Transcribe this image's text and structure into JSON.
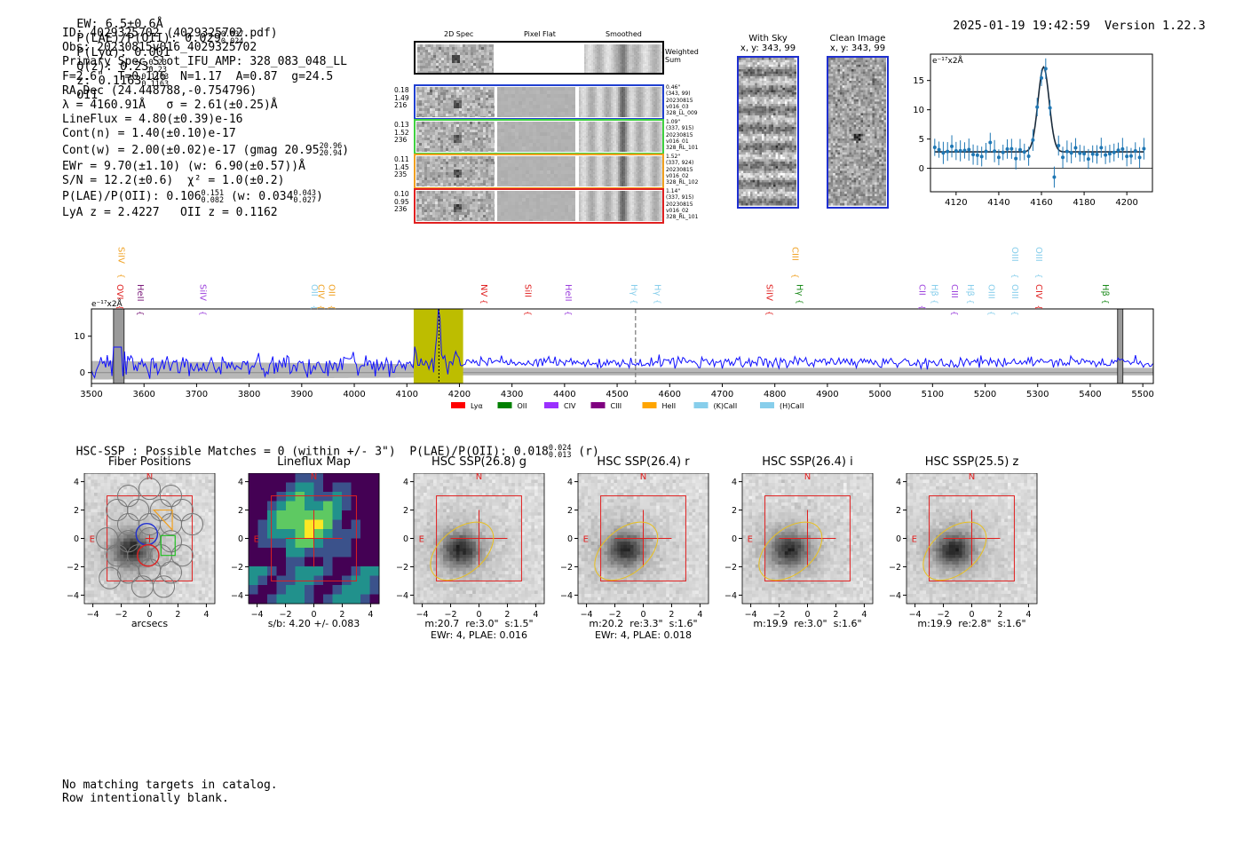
{
  "header": {
    "ew": "EW: 6.5±0.6Å",
    "plae": "P(LAE)/P(OII): 0.029",
    "plae_hi": "0.037",
    "plae_lo": "0.024",
    "plya": "P(Lyα): 0.001",
    "qz": "Q(z): 0.23",
    "qz_hi": "0.23",
    "qz_lo": "0.23",
    "z": "z: 0.1163",
    "z_hi": "0.1163",
    "z_lo": "0.1163",
    "z_line": "OII",
    "timestamp": "2025-01-19 19:42:59",
    "version": "Version 1.22.3"
  },
  "info": {
    "id": "ID: 4029325702 (4029325702.pdf)",
    "obs": "Obs: 20230815v016_4029325702",
    "primary": "Primary Spec_Slot_IFU_AMP: 328_083_048_LL",
    "fiber_params": "F=2.6\"  T=0.126  N=1.17  A=0.87  g=24.5",
    "radec": "RA,Dec (24.448788,-0.754796)",
    "lambda_sigma": "λ = 4160.91Å   σ = 2.61(±0.25)Å",
    "lineflux": "LineFlux = 4.80(±0.39)e-16",
    "cont_n": "Cont(n) = 1.40(±0.10)e-17",
    "cont_w": "Cont(w) = 2.00(±0.02)e-17 (gmag 20.95",
    "cont_w_hi": "20.96",
    "cont_w_lo": "20.94",
    "cont_w_end": ")",
    "ewr": "EWr = 9.70(±1.10) (w: 6.90(±0.57))Å",
    "sn": "S/N = 12.2(±0.6)  χ² = 1.0(±0.2)",
    "plae": "P(LAE)/P(OII): 0.106",
    "plae_hi": "0.151",
    "plae_lo": "0.082",
    "plae_w": "(w: 0.034",
    "plae_w_hi": "0.043",
    "plae_w_lo": "0.027",
    "plae_w_end": ")",
    "lya_oii": "LyA z = 2.4227   OII z = 0.1162"
  },
  "cutouts": {
    "col_2d": "2D Spec",
    "col_flat": "Pixel Flat",
    "col_smooth": "Smoothed",
    "weighted": "Weighted Sum",
    "rows": [
      {
        "left": [
          "0.18",
          "1.49",
          "216"
        ],
        "right": [
          "0.46\"",
          "(343, 99)",
          "20230815",
          "v016_03",
          "328_LL_009"
        ],
        "color": "#1f3fd0"
      },
      {
        "left": [
          "0.13",
          "1.52",
          "236"
        ],
        "right": [
          "1.09\"",
          "(337, 915)",
          "20230815",
          "v016_01",
          "328_RL_101"
        ],
        "color": "#3fd03f"
      },
      {
        "left": [
          "0.11",
          "1.45",
          "235"
        ],
        "right": [
          "1.52\"",
          "(337, 924)",
          "20230815",
          "v016_02",
          "328_RL_102"
        ],
        "color": "#f0a020"
      },
      {
        "left": [
          "0.10",
          "0.95",
          "236"
        ],
        "right": [
          "1.14\"",
          "(337, 915)",
          "20230815",
          "v016_02",
          "328_RL_101"
        ],
        "color": "#e02020"
      }
    ]
  },
  "sky": {
    "with_sky_title": "With Sky",
    "with_sky_xy": "x, y: 343, 99",
    "clean_title": "Clean Image",
    "clean_xy": "x, y: 343, 99"
  },
  "zoom_chart": {
    "ylabel": "e⁻¹⁷x2Å",
    "xticks": [
      "4120",
      "4140",
      "4160",
      "4180",
      "4200"
    ],
    "yticks": [
      "0",
      "5",
      "10",
      "15"
    ]
  },
  "spectrum": {
    "ylabel": "e⁻¹⁷x2Å",
    "yticks": [
      "0",
      "10"
    ],
    "xticks": [
      "3500",
      "3600",
      "3700",
      "3800",
      "3900",
      "4000",
      "4100",
      "4200",
      "4300",
      "4400",
      "4500",
      "4600",
      "4700",
      "4800",
      "4900",
      "5000",
      "5100",
      "5200",
      "5300",
      "5400",
      "5500"
    ],
    "lines": [
      {
        "label": "SiIV",
        "color": "#f0a020",
        "wl": 3545,
        "row": 0
      },
      {
        "label": "OVI",
        "color": "#e02020",
        "wl": 3542,
        "row": 1
      },
      {
        "label": "HeII",
        "color": "#7a1a7a",
        "wl": 3581,
        "row": 1
      },
      {
        "label": "SiIV",
        "color": "#9b3fdc",
        "wl": 3700,
        "row": 1
      },
      {
        "label": "OII",
        "color": "#87ceeb",
        "wl": 3912,
        "row": 1
      },
      {
        "label": "CIV",
        "color": "#f0a020",
        "wl": 3925,
        "row": 1
      },
      {
        "label": "OII",
        "color": "#f0a020",
        "wl": 3945,
        "row": 1
      },
      {
        "label": "NV",
        "color": "#e02020",
        "wl": 4235,
        "row": 1
      },
      {
        "label": "SiII",
        "color": "#e02020",
        "wl": 4318,
        "row": 1
      },
      {
        "label": "HeII",
        "color": "#9b3fdc",
        "wl": 4395,
        "row": 1
      },
      {
        "label": "Hγ",
        "color": "#87ceeb",
        "wl": 4520,
        "row": 1
      },
      {
        "label": "Hγ",
        "color": "#87ceeb",
        "wl": 4565,
        "row": 1
      },
      {
        "label": "CIII",
        "color": "#f0a020",
        "wl": 4827,
        "row": 0
      },
      {
        "label": "SiIV",
        "color": "#e02020",
        "wl": 4778,
        "row": 1
      },
      {
        "label": "Hγ",
        "color": "#1a8a1a",
        "wl": 4835,
        "row": 1
      },
      {
        "label": "CII",
        "color": "#9b3fdc",
        "wl": 5068,
        "row": 1
      },
      {
        "label": "Hβ",
        "color": "#87ceeb",
        "wl": 5092,
        "row": 1
      },
      {
        "label": "CIII",
        "color": "#9b3fdc",
        "wl": 5130,
        "row": 1
      },
      {
        "label": "Hβ",
        "color": "#87ceeb",
        "wl": 5160,
        "row": 1
      },
      {
        "label": "OIII",
        "color": "#87ceeb",
        "wl": 5200,
        "row": 1
      },
      {
        "label": "OIII",
        "color": "#87ceeb",
        "wl": 5245,
        "row": 0
      },
      {
        "label": "OIII",
        "color": "#87ceeb",
        "wl": 5245,
        "row": 1
      },
      {
        "label": "OIII",
        "color": "#87ceeb",
        "wl": 5290,
        "row": 0
      },
      {
        "label": "CIV",
        "color": "#e02020",
        "wl": 5290,
        "row": 1
      },
      {
        "label": "Hβ",
        "color": "#1a8a1a",
        "wl": 5417,
        "row": 1
      }
    ],
    "legend": [
      {
        "label": "Lyα",
        "color": "#ff0000"
      },
      {
        "label": "OII",
        "color": "#008000"
      },
      {
        "label": "CIV",
        "color": "#9b30ff"
      },
      {
        "label": "CIII",
        "color": "#800080"
      },
      {
        "label": "HeII",
        "color": "#ffa500"
      },
      {
        "label": "(K)CaII",
        "color": "#87ceeb"
      },
      {
        "label": "(H)CaII",
        "color": "#87ceeb"
      }
    ]
  },
  "hsc": {
    "line": "HSC-SSP : Possible Matches = 0 (within +/- 3\")  P(LAE)/P(OII): 0.018",
    "line_hi": "0.024",
    "line_lo": "0.013",
    "line_end": " (r)",
    "panels": [
      {
        "title": "Fiber Positions",
        "cap1": "arcsecs",
        "cap2": ""
      },
      {
        "title": "Lineflux Map",
        "cap1": "s/b: 4.20 +/- 0.083",
        "cap2": ""
      },
      {
        "title": "HSC SSP(26.8) g",
        "cap1": "m:20.7  re:3.0\"  s:1.5\"",
        "cap2": "EWr: 4, PLAE: 0.016"
      },
      {
        "title": "HSC SSP(26.4) r",
        "cap1": "m:20.2  re:3.3\"  s:1.6\"",
        "cap2": "EWr: 4, PLAE: 0.018"
      },
      {
        "title": "HSC SSP(26.4) i",
        "cap1": "m:19.9  re:3.0\"  s:1.6\"",
        "cap2": ""
      },
      {
        "title": "HSC SSP(25.5) z",
        "cap1": "m:19.9  re:2.8\"  s:1.6\"",
        "cap2": ""
      }
    ],
    "yticks": [
      "4",
      "2",
      "0",
      "−2",
      "−4"
    ],
    "xticks": [
      "−4",
      "−2",
      "0",
      "2",
      "4"
    ],
    "north": "N",
    "east": "E"
  },
  "footer": {
    "line1": "No matching targets in catalog.",
    "line2": "Row intentionally blank."
  }
}
